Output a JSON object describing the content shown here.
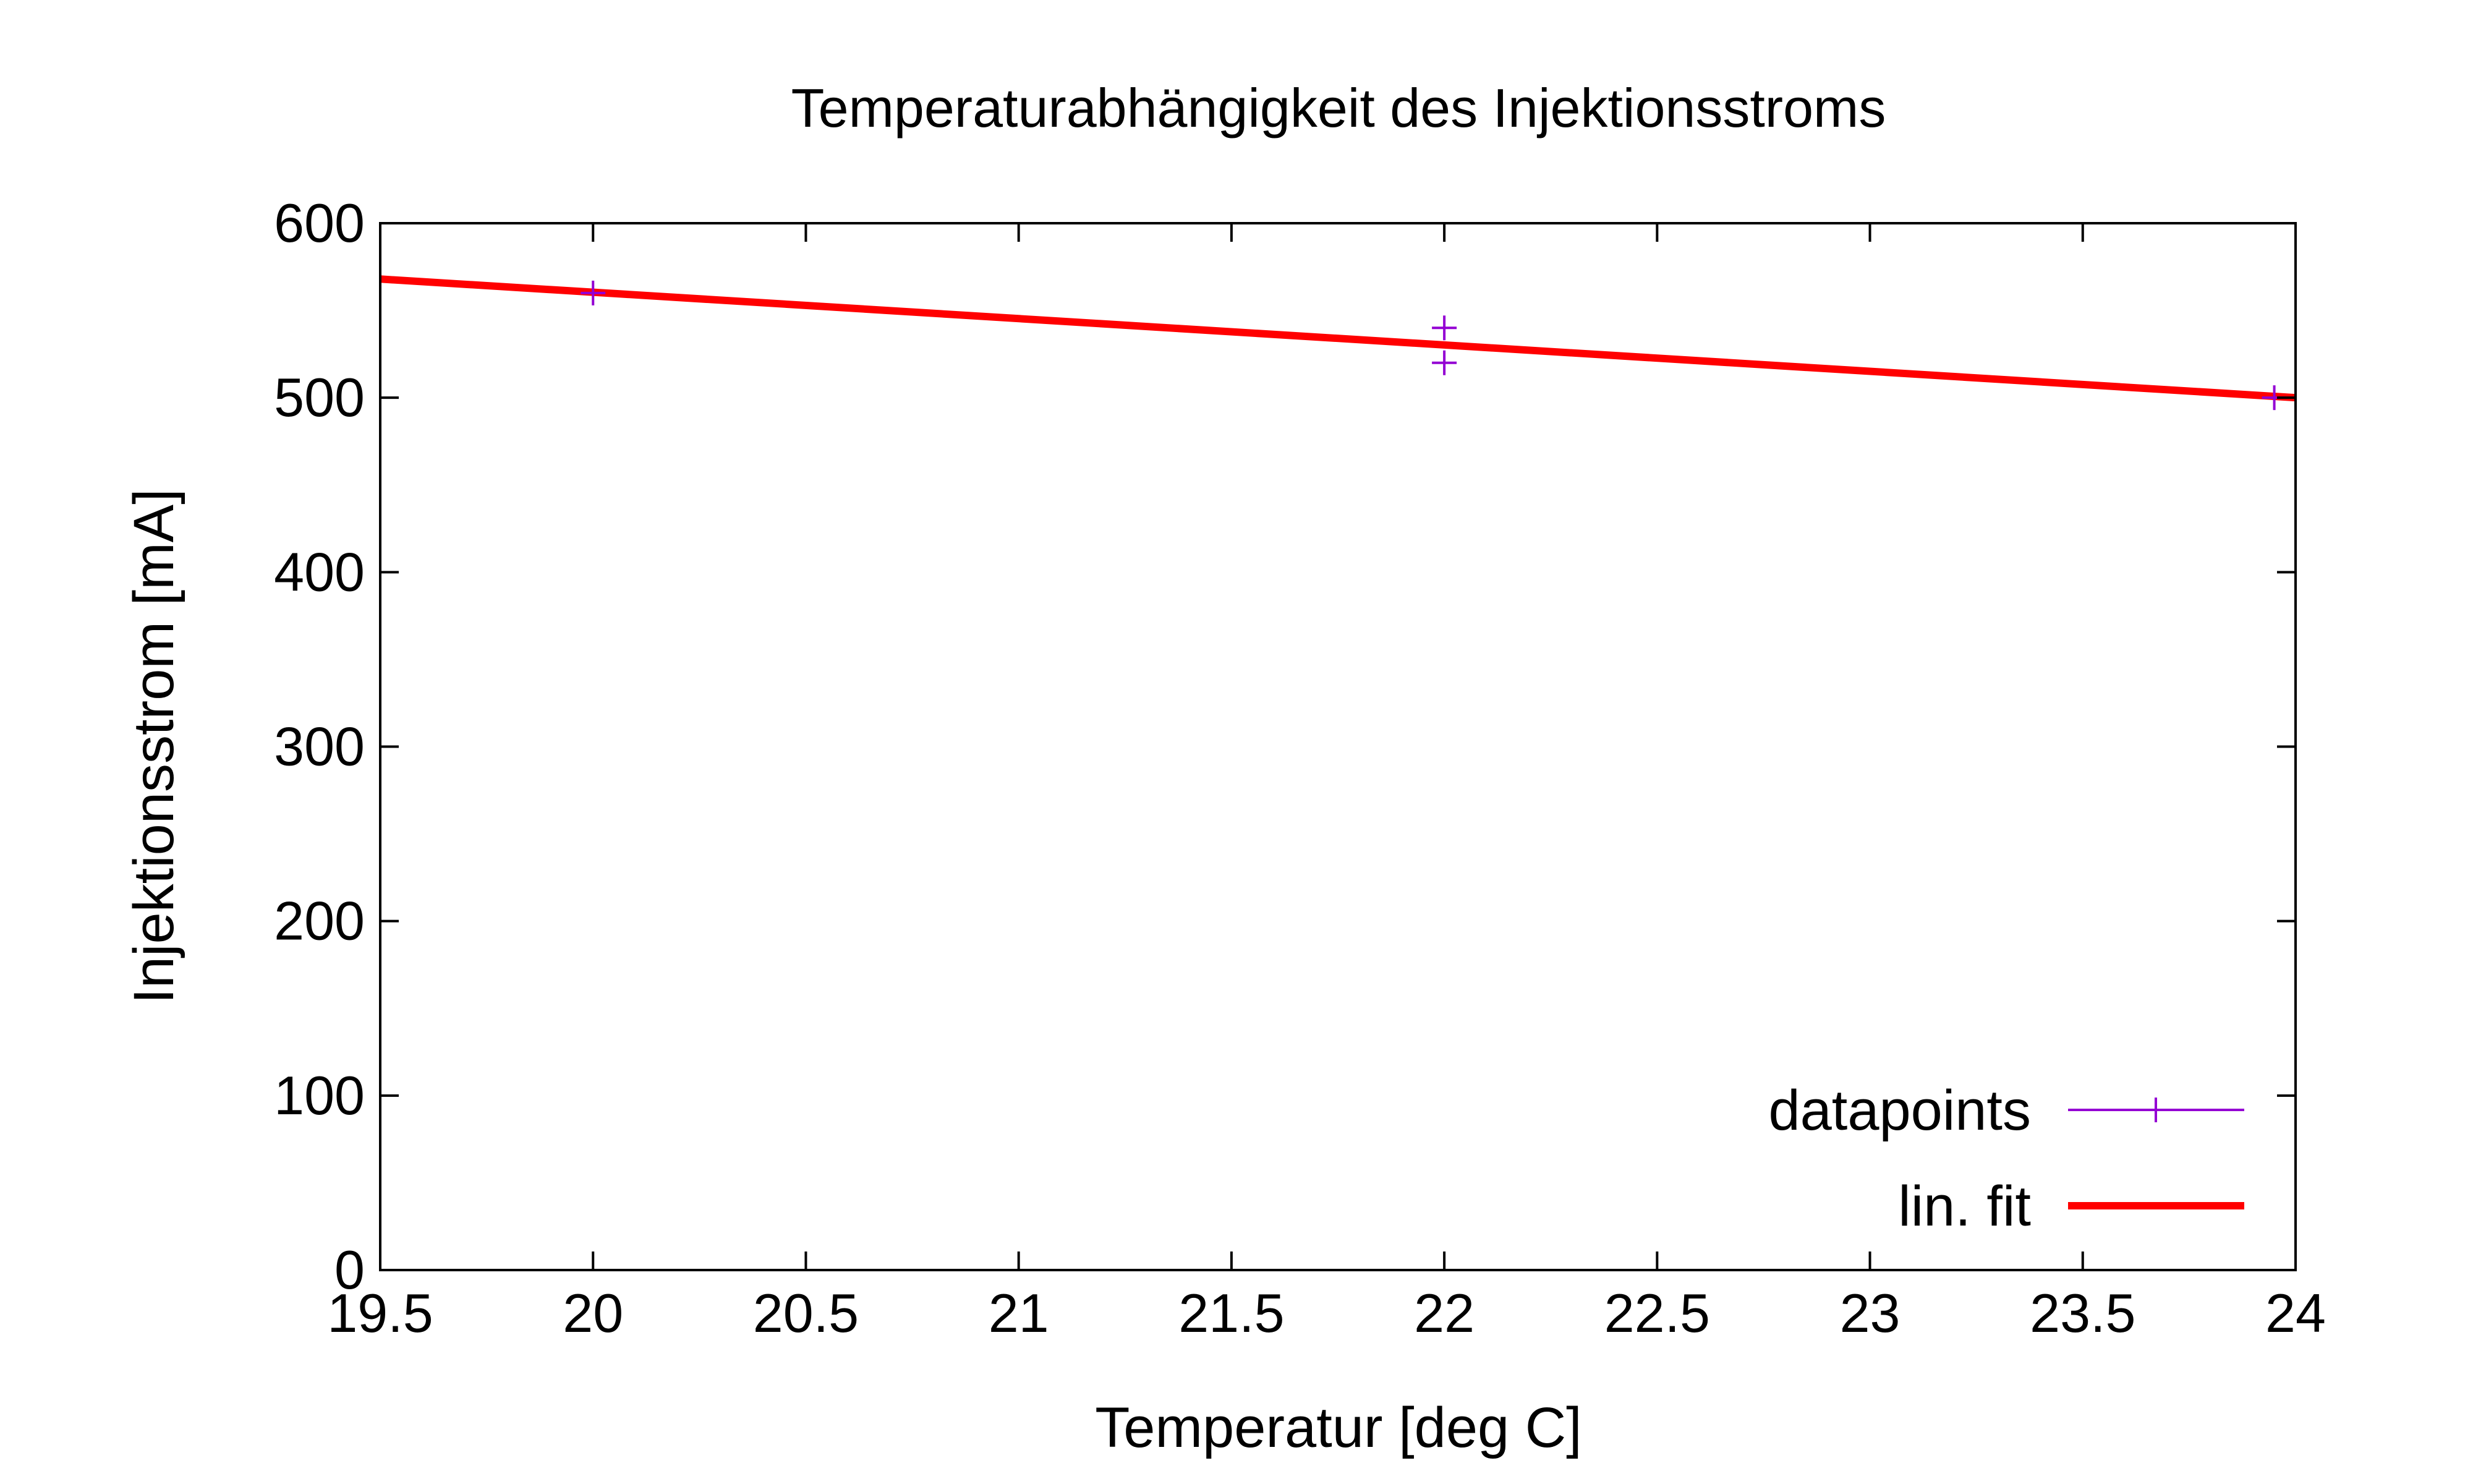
{
  "chart_data": {
    "type": "line",
    "title": "Temperaturabhängigkeit des Injektionsstroms",
    "xlabel": "Temperatur [deg C]",
    "ylabel": "Injektionsstrom [mA]",
    "xlim": [
      19.5,
      24
    ],
    "ylim": [
      0,
      600
    ],
    "x_ticks": [
      "19.5",
      "20",
      "20.5",
      "21",
      "21.5",
      "22",
      "22.5",
      "23",
      "23.5",
      "24"
    ],
    "y_ticks": [
      "0",
      "100",
      "200",
      "300",
      "400",
      "500",
      "600"
    ],
    "grid": false,
    "legend_position": "bottom-right",
    "series": [
      {
        "name": "datapoints",
        "kind": "scatter",
        "marker": "plus",
        "color": "#9400d3",
        "points": [
          {
            "x": 20,
            "y": 560
          },
          {
            "x": 22,
            "y": 540
          },
          {
            "x": 22,
            "y": 520
          },
          {
            "x": 23.95,
            "y": 500
          }
        ]
      },
      {
        "name": "lin. fit",
        "kind": "line",
        "color": "#ff0000",
        "points": [
          {
            "x": 19.5,
            "y": 568
          },
          {
            "x": 24,
            "y": 500
          }
        ]
      }
    ]
  }
}
